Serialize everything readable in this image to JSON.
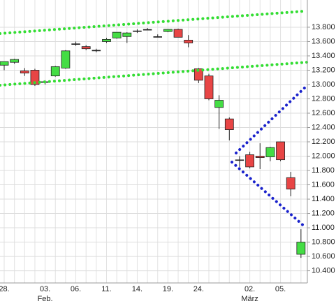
{
  "chart_data": {
    "type": "candlestick",
    "categories": [
      "28.",
      null,
      null,
      null,
      "03.",
      null,
      null,
      "06.",
      null,
      null,
      "11.",
      null,
      null,
      "14.",
      null,
      null,
      "19.",
      null,
      null,
      "24.",
      null,
      null,
      null,
      null,
      "02.",
      null,
      null,
      "05.",
      null,
      null
    ],
    "month_labels": [
      null,
      null,
      null,
      null,
      "Feb.",
      null,
      null,
      null,
      null,
      null,
      null,
      null,
      null,
      null,
      null,
      null,
      null,
      null,
      null,
      null,
      null,
      null,
      null,
      null,
      "März",
      null,
      null,
      null,
      null,
      null
    ],
    "open": [
      13270,
      13310,
      13190,
      13200,
      13040,
      13120,
      13230,
      13570,
      13530,
      13480,
      13600,
      13650,
      13670,
      13740,
      13770,
      13670,
      13740,
      13770,
      13620,
      13220,
      13120,
      12680,
      12520,
      11950,
      12020,
      12000,
      11990,
      12200,
      11700,
      10630
    ],
    "high": [
      13320,
      13360,
      13230,
      13220,
      13060,
      13260,
      13480,
      13600,
      13550,
      13500,
      13650,
      13730,
      13730,
      13770,
      13790,
      13700,
      13770,
      13780,
      13690,
      13230,
      13150,
      12850,
      12540,
      12000,
      12060,
      12180,
      12130,
      12200,
      11780,
      10980
    ],
    "low": [
      13200,
      13290,
      13120,
      12980,
      13000,
      13110,
      13220,
      13540,
      13480,
      13450,
      13580,
      13640,
      13580,
      13720,
      13760,
      13660,
      13730,
      13660,
      13520,
      13020,
      12780,
      12380,
      12220,
      11850,
      11830,
      11820,
      11930,
      11930,
      11440,
      10580
    ],
    "close": [
      13320,
      13350,
      13160,
      13000,
      13040,
      13250,
      13470,
      13570,
      13500,
      13480,
      13630,
      13730,
      13720,
      13750,
      13770,
      13670,
      13770,
      13660,
      13580,
      13060,
      12800,
      12780,
      12370,
      11950,
      11850,
      11980,
      12120,
      11950,
      11540,
      10800
    ],
    "up_color": "#44dd44",
    "down_color": "#e84545",
    "ylim": [
      10230,
      14180
    ],
    "yticks": [
      {
        "value": 10400,
        "label": "10.400"
      },
      {
        "value": 10600,
        "label": "10.600"
      },
      {
        "value": 10800,
        "label": "10.800"
      },
      {
        "value": 11000,
        "label": "11.000"
      },
      {
        "value": 11200,
        "label": "11.200"
      },
      {
        "value": 11400,
        "label": "11.400"
      },
      {
        "value": 11600,
        "label": "11.600"
      },
      {
        "value": 11800,
        "label": "11.800"
      },
      {
        "value": 12000,
        "label": "12.000"
      },
      {
        "value": 12200,
        "label": "12.200"
      },
      {
        "value": 12400,
        "label": "12.400"
      },
      {
        "value": 12600,
        "label": "12.600"
      },
      {
        "value": 12800,
        "label": "12.800"
      },
      {
        "value": 13000,
        "label": "13.000"
      },
      {
        "value": 13200,
        "label": "13.200"
      },
      {
        "value": 13400,
        "label": "13.400"
      },
      {
        "value": 13600,
        "label": "13.600"
      },
      {
        "value": 13800,
        "label": "13.800"
      }
    ],
    "grid": true
  }
}
